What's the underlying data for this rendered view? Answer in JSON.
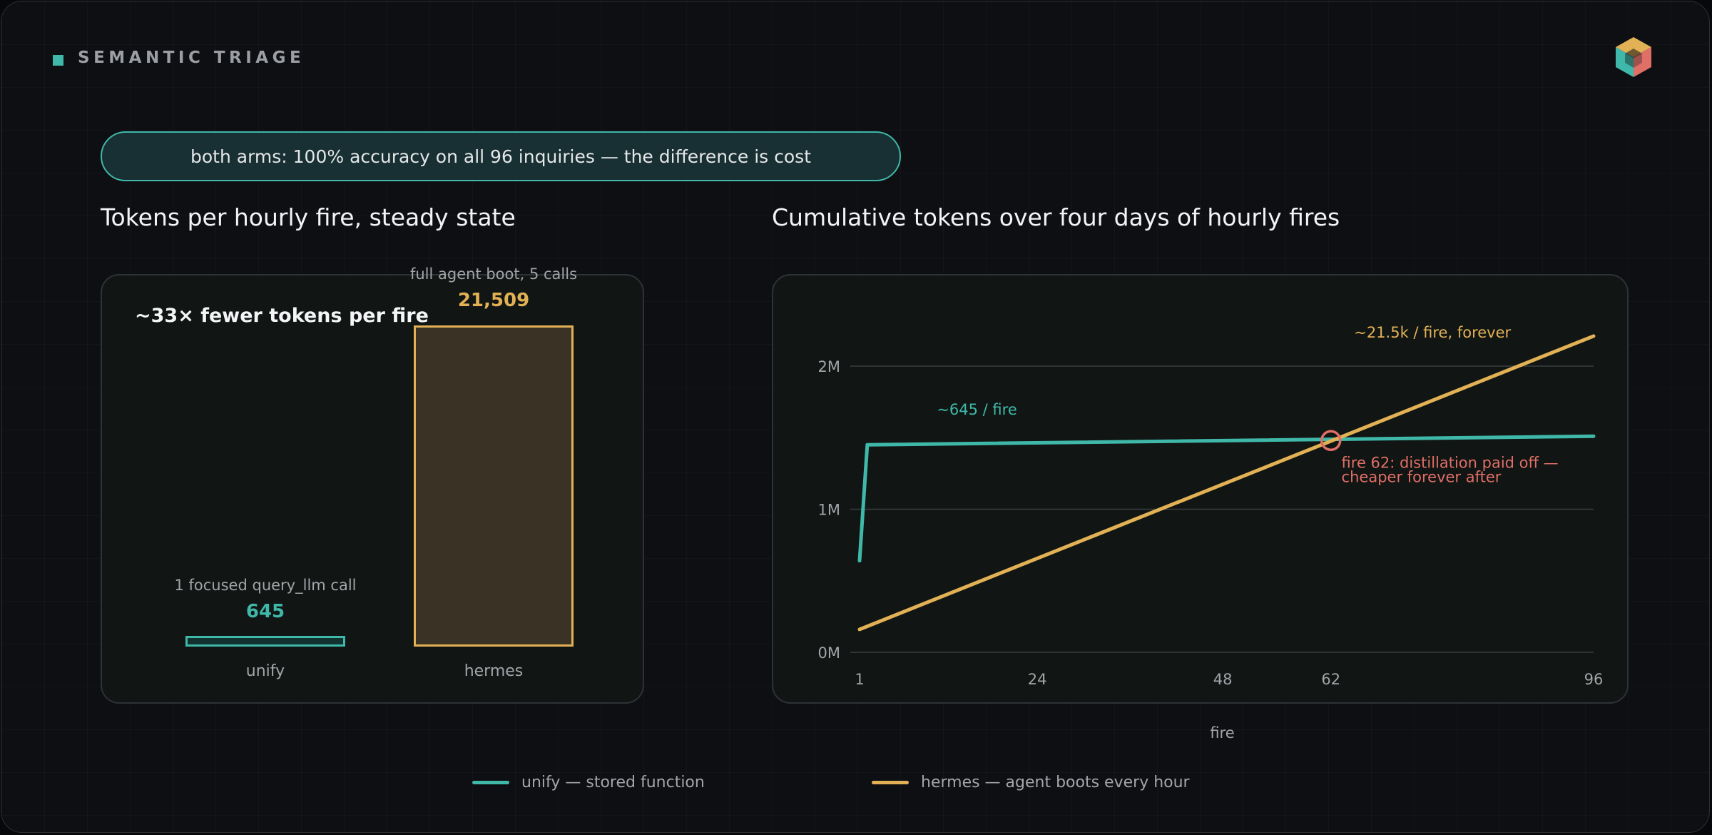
{
  "section_label": "SEMANTIC TRIAGE",
  "banner": "both arms: 100% accuracy on all 96 inquiries — the difference is cost",
  "left_heading": "Tokens per hourly fire, steady state",
  "right_heading": "Cumulative tokens over four days of hourly fires",
  "bar_callout": "~33× fewer tokens per fire",
  "colors": {
    "accent": "#3fb8a9",
    "unify": "#3fb8a9",
    "hermes": "#e2b155",
    "crossover": "#df6f67",
    "background": "#0e0f12"
  },
  "logo": {
    "icon": "cube-icon"
  },
  "chart_data": [
    {
      "type": "bar",
      "categories": [
        "unify",
        "hermes"
      ],
      "values": [
        645,
        21509
      ],
      "value_labels": [
        "645",
        "21,509"
      ],
      "captions": [
        "1 focused query_llm call",
        "full agent boot, 5 calls"
      ],
      "colors": [
        "#3fb8a9",
        "#e2b155"
      ]
    },
    {
      "type": "line",
      "xlabel": "fire",
      "ylabel": "",
      "xlim": [
        1,
        96
      ],
      "ylim": [
        0,
        2200000
      ],
      "xticks": [
        1,
        24,
        48,
        62,
        96
      ],
      "xtick_labels": [
        "1",
        "24",
        "48",
        "62",
        "96"
      ],
      "yticks": [
        0,
        1000000,
        2000000
      ],
      "ytick_labels": [
        "0M",
        "1M",
        "2M"
      ],
      "grid": true,
      "legend_position": "bottom",
      "series": [
        {
          "name": "unify — stored function",
          "color": "#3fb8a9",
          "x": [
            1,
            2,
            96
          ],
          "y": [
            640000,
            1450000,
            1510000
          ]
        },
        {
          "name": "hermes — agent boots every hour",
          "color": "#e2b155",
          "x": [
            1,
            96
          ],
          "y": [
            160000,
            2210000
          ]
        }
      ],
      "annotations": [
        {
          "text": "~645 / fire",
          "color": "#3fb8a9",
          "x": 11,
          "y": 1660000
        },
        {
          "text": "~21.5k / fire, forever",
          "color": "#e2b155",
          "x": 65,
          "y": 2200000
        },
        {
          "text": "fire 62: distillation paid off —",
          "text2": "cheaper forever after",
          "color": "#df6f67",
          "x": 63,
          "y": 1290000,
          "marker_x": 62,
          "marker_y": 1480000
        }
      ]
    }
  ]
}
